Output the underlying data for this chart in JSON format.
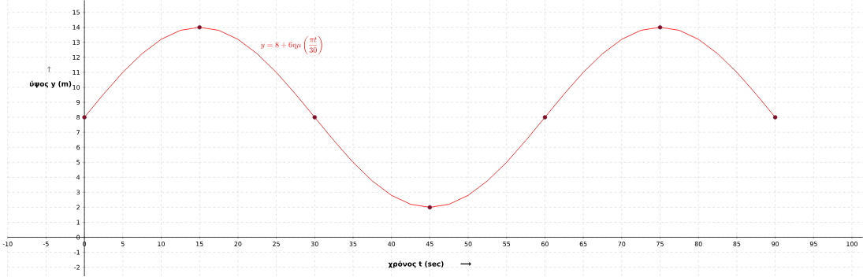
{
  "chart_data": {
    "type": "line",
    "xlabel": "χρόνος t (sec)",
    "ylabel": "ύψος y (m)",
    "annotations": [
      "y = 8 + 6\\eta\\mu\\left(\\frac{\\pi t}{30}\\right)",
      "↑",
      "⟶"
    ],
    "xlim": [
      -10,
      101.4
    ],
    "ylim": [
      -2.6,
      15.8
    ],
    "xticks": [
      -10,
      -5,
      0,
      5,
      10,
      15,
      20,
      25,
      30,
      35,
      40,
      45,
      50,
      55,
      60,
      65,
      70,
      75,
      80,
      85,
      90,
      95,
      100
    ],
    "yticks": [
      -2,
      -1,
      0,
      1,
      2,
      3,
      4,
      5,
      6,
      7,
      8,
      9,
      10,
      11,
      12,
      13,
      14,
      15
    ],
    "grid": true,
    "series": [
      {
        "type": "line",
        "color": "#ff0000",
        "marker": "none",
        "x": [
          0,
          2.5,
          5,
          7.5,
          10,
          12.5,
          15,
          17.5,
          20,
          22.5,
          25,
          27.5,
          30,
          32.5,
          35,
          37.5,
          40,
          42.5,
          45,
          47.5,
          50,
          52.5,
          55,
          57.5,
          60,
          62.5,
          65,
          67.5,
          70,
          72.5,
          75,
          77.5,
          80,
          82.5,
          85,
          87.5,
          90
        ],
        "values": [
          8,
          9.55,
          11,
          12.24,
          13.2,
          13.8,
          14,
          13.8,
          13.2,
          12.24,
          11,
          9.55,
          8,
          6.45,
          5,
          3.76,
          2.8,
          2.2,
          2,
          2.2,
          2.8,
          3.76,
          5,
          6.45,
          8,
          9.55,
          11,
          12.24,
          13.2,
          13.8,
          14,
          13.8,
          13.2,
          12.24,
          11,
          9.55,
          8
        ]
      },
      {
        "type": "scatter",
        "color": "#8b0a2a",
        "marker": "circle",
        "x": [
          0,
          15,
          30,
          45,
          60,
          75,
          90
        ],
        "values": [
          8,
          14,
          8,
          2,
          8,
          14,
          8
        ]
      }
    ]
  }
}
